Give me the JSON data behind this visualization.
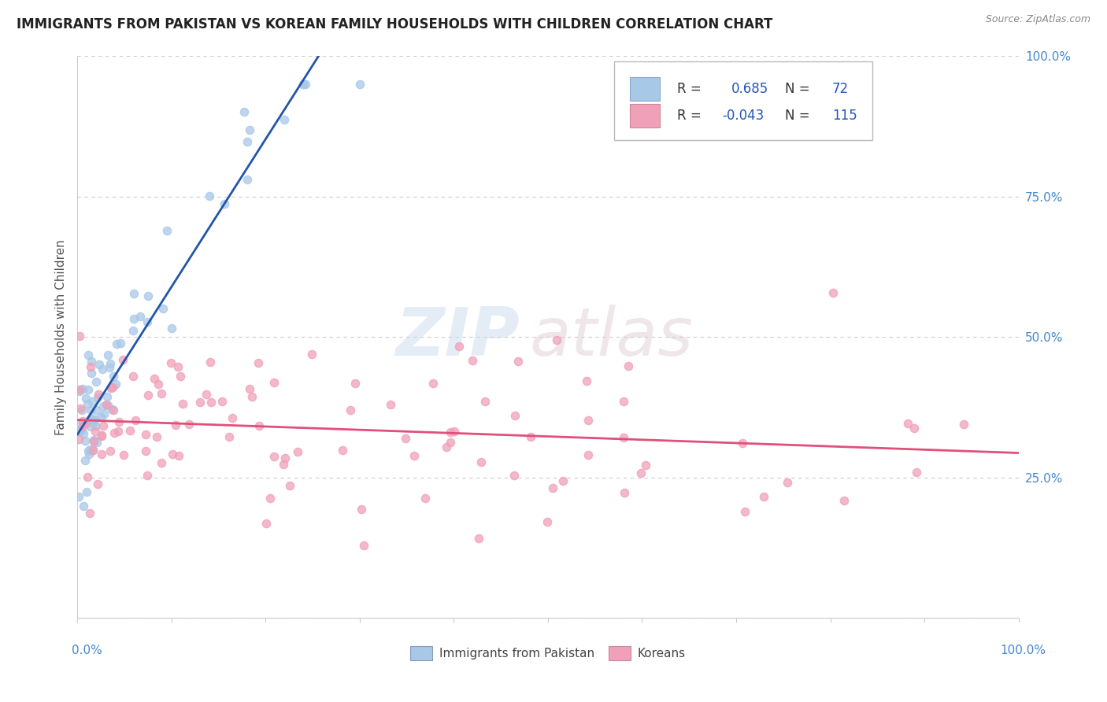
{
  "title": "IMMIGRANTS FROM PAKISTAN VS KOREAN FAMILY HOUSEHOLDS WITH CHILDREN CORRELATION CHART",
  "source": "Source: ZipAtlas.com",
  "ylabel": "Family Households with Children",
  "watermark_zip": "ZIP",
  "watermark_atlas": "atlas",
  "xlim": [
    0.0,
    1.0
  ],
  "ylim": [
    0.0,
    1.0
  ],
  "pakistan_color": "#a8c8e8",
  "korean_color": "#f0a0b8",
  "pakistan_line_color": "#2255aa",
  "korean_line_color": "#e0507a",
  "background_color": "#ffffff",
  "grid_color": "#cccccc",
  "tick_color": "#4488cc",
  "title_color": "#222222",
  "source_color": "#888888",
  "legend_box_color": "#a8c8e8",
  "legend_box2_color": "#f0a0b8",
  "legend_text_color": "#333333",
  "legend_value_color": "#2255bb"
}
